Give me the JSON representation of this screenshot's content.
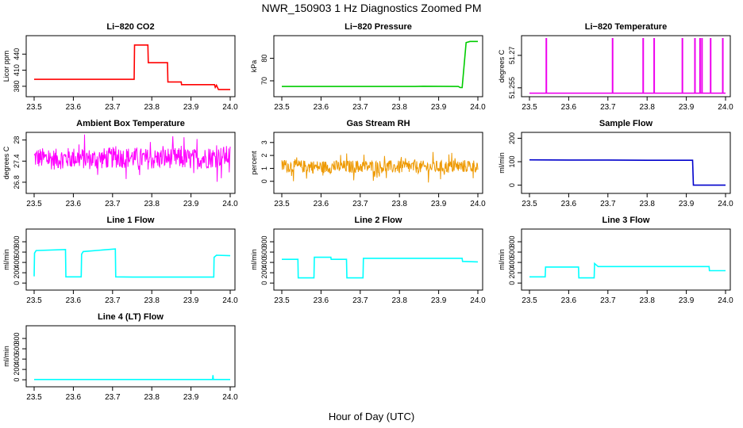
{
  "figure": {
    "title": "NWR_150903  1 Hz Diagnostics Zoomed PM",
    "xlabel": "Hour of Day (UTC)"
  },
  "chart_data": [
    {
      "type": "line",
      "title": "Li−820 CO2",
      "ylabel": "Licor ppm",
      "color": "#ff0000",
      "xlim": [
        23.5,
        24.0
      ],
      "ylim": [
        365,
        470
      ],
      "yticks": [
        380,
        410,
        440
      ],
      "xticks": [
        23.5,
        23.6,
        23.7,
        23.8,
        23.9,
        24.0
      ],
      "series": [
        {
          "x": [
            23.5,
            23.755,
            23.756,
            23.79,
            23.791,
            23.84,
            23.841,
            23.875,
            23.876,
            23.96,
            23.962,
            23.965,
            23.97,
            24.0
          ],
          "y": [
            393,
            393,
            457,
            457,
            424,
            424,
            388,
            388,
            383,
            383,
            378,
            382,
            374,
            374
          ]
        }
      ]
    },
    {
      "type": "line",
      "title": "Li−820 Pressure",
      "ylabel": "kPa",
      "color": "#00cc00",
      "xlim": [
        23.5,
        24.0
      ],
      "ylim": [
        64,
        89
      ],
      "yticks": [
        70,
        80
      ],
      "xticks": [
        23.5,
        23.6,
        23.7,
        23.8,
        23.9,
        24.0
      ],
      "series": [
        {
          "x": [
            23.5,
            23.84,
            23.86,
            23.95,
            23.955,
            23.96,
            23.97,
            23.98,
            24.0
          ],
          "y": [
            67.5,
            67.5,
            67.6,
            67.5,
            67.0,
            67.0,
            87.0,
            87.5,
            87.5
          ]
        }
      ]
    },
    {
      "type": "line",
      "title": "Li−820 Temperature",
      "ylabel": "degrees C",
      "color": "#ee00ee",
      "xlim": [
        23.5,
        24.0
      ],
      "ylim": [
        51.252,
        51.278
      ],
      "yticks": [
        51.255,
        51.27
      ],
      "xticks": [
        23.5,
        23.6,
        23.7,
        23.8,
        23.9,
        24.0
      ],
      "spikes": [
        23.543,
        23.712,
        23.79,
        23.818,
        23.89,
        23.922,
        23.935,
        23.94,
        23.962,
        23.993
      ],
      "series": [
        {
          "x": [
            23.5,
            24.0
          ],
          "y": [
            51.2525,
            51.2525
          ]
        }
      ]
    },
    {
      "type": "line",
      "title": "Ambient Box Temperature",
      "ylabel": "degrees C",
      "color": "#ff00ff",
      "xlim": [
        23.5,
        24.0
      ],
      "ylim": [
        26.55,
        28.15
      ],
      "yticks": [
        26.8,
        27.4,
        28.0
      ],
      "xticks": [
        23.5,
        23.6,
        23.7,
        23.8,
        23.9,
        24.0
      ],
      "series": [
        {
          "x": [
            23.5,
            23.55,
            23.6,
            23.65,
            23.7,
            23.75,
            23.8,
            23.85,
            23.9,
            23.95,
            24.0
          ],
          "y": [
            27.5,
            27.45,
            27.5,
            27.45,
            27.5,
            27.5,
            27.45,
            27.5,
            27.45,
            27.5,
            27.55
          ],
          "noise": 0.6
        }
      ]
    },
    {
      "type": "line",
      "title": "Gas Stream RH",
      "ylabel": "percent",
      "color": "#ee9900",
      "xlim": [
        23.5,
        24.0
      ],
      "ylim": [
        -0.75,
        3.6
      ],
      "yticks": [
        0,
        1,
        2,
        3
      ],
      "xticks": [
        23.5,
        23.6,
        23.7,
        23.8,
        23.9,
        24.0
      ],
      "series": [
        {
          "x": [
            23.5,
            23.6,
            23.7,
            23.8,
            23.9,
            24.0
          ],
          "y": [
            1.2,
            1.1,
            1.15,
            1.1,
            1.1,
            1.2
          ],
          "noise": 1.0
        }
      ]
    },
    {
      "type": "line",
      "title": "Sample Flow",
      "ylabel": "ml/min",
      "color": "#0000cc",
      "xlim": [
        23.5,
        24.0
      ],
      "ylim": [
        -25,
        215
      ],
      "yticks": [
        0,
        100,
        200
      ],
      "xticks": [
        23.5,
        23.6,
        23.7,
        23.8,
        23.9,
        24.0
      ],
      "series": [
        {
          "x": [
            23.5,
            23.6,
            23.7,
            23.8,
            23.916,
            23.918,
            23.925,
            24.0
          ],
          "y": [
            108,
            107,
            107,
            106,
            106,
            0,
            0,
            0
          ]
        }
      ]
    },
    {
      "type": "line",
      "title": "Line 1 Flow",
      "ylabel": "ml/min",
      "color": "#00ffff",
      "xlim": [
        23.5,
        24.0
      ],
      "ylim": [
        -90,
        1000
      ],
      "yticks": [
        0,
        200,
        400,
        600,
        800
      ],
      "xticks": [
        23.5,
        23.6,
        23.7,
        23.8,
        23.9,
        24.0
      ],
      "series": [
        {
          "x": [
            23.5,
            23.501,
            23.505,
            23.58,
            23.581,
            23.62,
            23.621,
            23.625,
            23.707,
            23.708,
            23.75,
            23.958,
            23.959,
            23.965,
            24.0
          ],
          "y": [
            130,
            580,
            630,
            650,
            120,
            120,
            560,
            610,
            660,
            120,
            115,
            115,
            500,
            540,
            530
          ]
        }
      ]
    },
    {
      "type": "line",
      "title": "Line 2 Flow",
      "ylabel": "ml/min",
      "color": "#00ffff",
      "xlim": [
        23.5,
        24.0
      ],
      "ylim": [
        -90,
        1000
      ],
      "yticks": [
        0,
        200,
        400,
        600,
        800
      ],
      "xticks": [
        23.5,
        23.6,
        23.7,
        23.8,
        23.9,
        24.0
      ],
      "series": [
        {
          "x": [
            23.5,
            23.541,
            23.542,
            23.582,
            23.583,
            23.625,
            23.626,
            23.665,
            23.666,
            23.707,
            23.708,
            23.96,
            23.961,
            24.0
          ],
          "y": [
            460,
            460,
            100,
            100,
            500,
            500,
            460,
            460,
            100,
            100,
            480,
            480,
            420,
            410
          ]
        }
      ]
    },
    {
      "type": "line",
      "title": "Line 3 Flow",
      "ylabel": "ml/min",
      "color": "#00ffff",
      "xlim": [
        23.5,
        24.0
      ],
      "ylim": [
        -90,
        1000
      ],
      "yticks": [
        0,
        200,
        400,
        600,
        800
      ],
      "xticks": [
        23.5,
        23.6,
        23.7,
        23.8,
        23.9,
        24.0
      ],
      "series": [
        {
          "x": [
            23.5,
            23.502,
            23.54,
            23.541,
            23.625,
            23.626,
            23.665,
            23.666,
            23.675,
            23.958,
            23.959,
            24.0
          ],
          "y": [
            120,
            120,
            120,
            310,
            310,
            100,
            100,
            380,
            320,
            320,
            240,
            240
          ]
        }
      ]
    },
    {
      "type": "line",
      "title": "Line 4 (LT) Flow",
      "ylabel": "ml/min",
      "color": "#00ffff",
      "xlim": [
        23.5,
        24.0
      ],
      "ylim": [
        -90,
        1000
      ],
      "yticks": [
        0,
        200,
        400,
        600,
        800
      ],
      "xticks": [
        23.5,
        23.6,
        23.7,
        23.8,
        23.9,
        24.0
      ],
      "series": [
        {
          "x": [
            23.5,
            23.955,
            23.956,
            23.957,
            23.958,
            24.0
          ],
          "y": [
            5,
            5,
            90,
            5,
            5,
            5
          ]
        }
      ]
    }
  ]
}
